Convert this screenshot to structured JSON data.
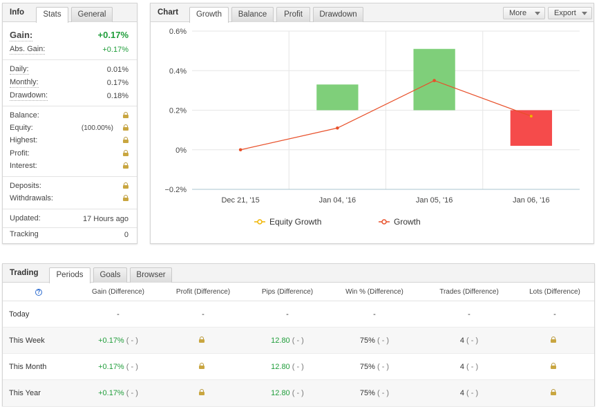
{
  "info": {
    "tabs": [
      {
        "label": "Info"
      },
      {
        "label": "Stats"
      },
      {
        "label": "General"
      }
    ],
    "gain": {
      "label": "Gain:",
      "value": "+0.17%"
    },
    "abs_gain": {
      "label": "Abs. Gain:",
      "value": "+0.17%"
    },
    "daily": {
      "label": "Daily:",
      "value": "0.01%"
    },
    "monthly": {
      "label": "Monthly:",
      "value": "0.17%"
    },
    "drawdown": {
      "label": "Drawdown:",
      "value": "0.18%"
    },
    "balance": {
      "label": "Balance:"
    },
    "equity": {
      "label": "Equity:",
      "pct": "(100.00%)"
    },
    "highest": {
      "label": "Highest:"
    },
    "profit": {
      "label": "Profit:"
    },
    "interest": {
      "label": "Interest:"
    },
    "deposits": {
      "label": "Deposits:"
    },
    "withdrawals": {
      "label": "Withdrawals:"
    },
    "updated": {
      "label": "Updated:",
      "value": "17 Hours ago"
    },
    "tracking": {
      "label": "Tracking",
      "value": "0"
    }
  },
  "chart_panel": {
    "title": "Chart",
    "tabs": [
      {
        "label": "Growth"
      },
      {
        "label": "Balance"
      },
      {
        "label": "Profit"
      },
      {
        "label": "Drawdown"
      }
    ],
    "more_label": "More",
    "export_label": "Export"
  },
  "chart_data": {
    "type": "bar",
    "categories": [
      "Dec 21, '15",
      "Jan 04, '16",
      "Jan 05, '16",
      "Jan 06, '16"
    ],
    "ylim": [
      -0.2,
      0.6
    ],
    "yticks": [
      {
        "value": -0.2,
        "label": "−0.2%"
      },
      {
        "value": 0,
        "label": "0%"
      },
      {
        "value": 0.2,
        "label": "0.2%"
      },
      {
        "value": 0.4,
        "label": "0.4%"
      },
      {
        "value": 0.6,
        "label": "0.6%"
      }
    ],
    "series": [
      {
        "name": "Equity Growth",
        "kind": "line",
        "color": "#f0b400",
        "values": [
          0,
          0.11,
          0.35,
          0.17
        ]
      },
      {
        "name": "Growth",
        "kind": "line",
        "color": "#e8502a",
        "values": [
          0,
          0.11,
          0.35,
          0.17
        ]
      }
    ],
    "bars": [
      {
        "category": "Jan 04, '16",
        "from": 0.2,
        "to": 0.33,
        "color": "#7fcf7a"
      },
      {
        "category": "Jan 05, '16",
        "from": 0.2,
        "to": 0.51,
        "color": "#7fcf7a"
      },
      {
        "category": "Jan 06, '16",
        "from": 0.2,
        "to": 0.02,
        "color": "#f54b4b"
      }
    ],
    "legend": [
      "Equity Growth",
      "Growth"
    ],
    "legend_position": "bottom",
    "grid": true
  },
  "trading": {
    "tabs": [
      {
        "label": "Trading"
      },
      {
        "label": "Periods"
      },
      {
        "label": "Goals"
      },
      {
        "label": "Browser"
      }
    ],
    "help_icon": "?",
    "columns": [
      "Gain (Difference)",
      "Profit (Difference)",
      "Pips (Difference)",
      "Win % (Difference)",
      "Trades (Difference)",
      "Lots (Difference)"
    ],
    "rows": [
      {
        "period": "Today",
        "gain": "-",
        "profit": "-",
        "pips": "-",
        "win": "-",
        "trades": "-",
        "lots": "-"
      },
      {
        "period": "This Week",
        "gain": "+0.17%",
        "gain_diff": "( - )",
        "pips": "12.80",
        "pips_diff": "( - )",
        "win": "75%",
        "win_diff": "( - )",
        "trades": "4",
        "trades_diff": "( - )"
      },
      {
        "period": "This Month",
        "gain": "+0.17%",
        "gain_diff": "( - )",
        "pips": "12.80",
        "pips_diff": "( - )",
        "win": "75%",
        "win_diff": "( - )",
        "trades": "4",
        "trades_diff": "( - )"
      },
      {
        "period": "This Year",
        "gain": "+0.17%",
        "gain_diff": "( - )",
        "pips": "12.80",
        "pips_diff": "( - )",
        "win": "75%",
        "win_diff": "( - )",
        "trades": "4",
        "trades_diff": "( - )"
      }
    ]
  }
}
